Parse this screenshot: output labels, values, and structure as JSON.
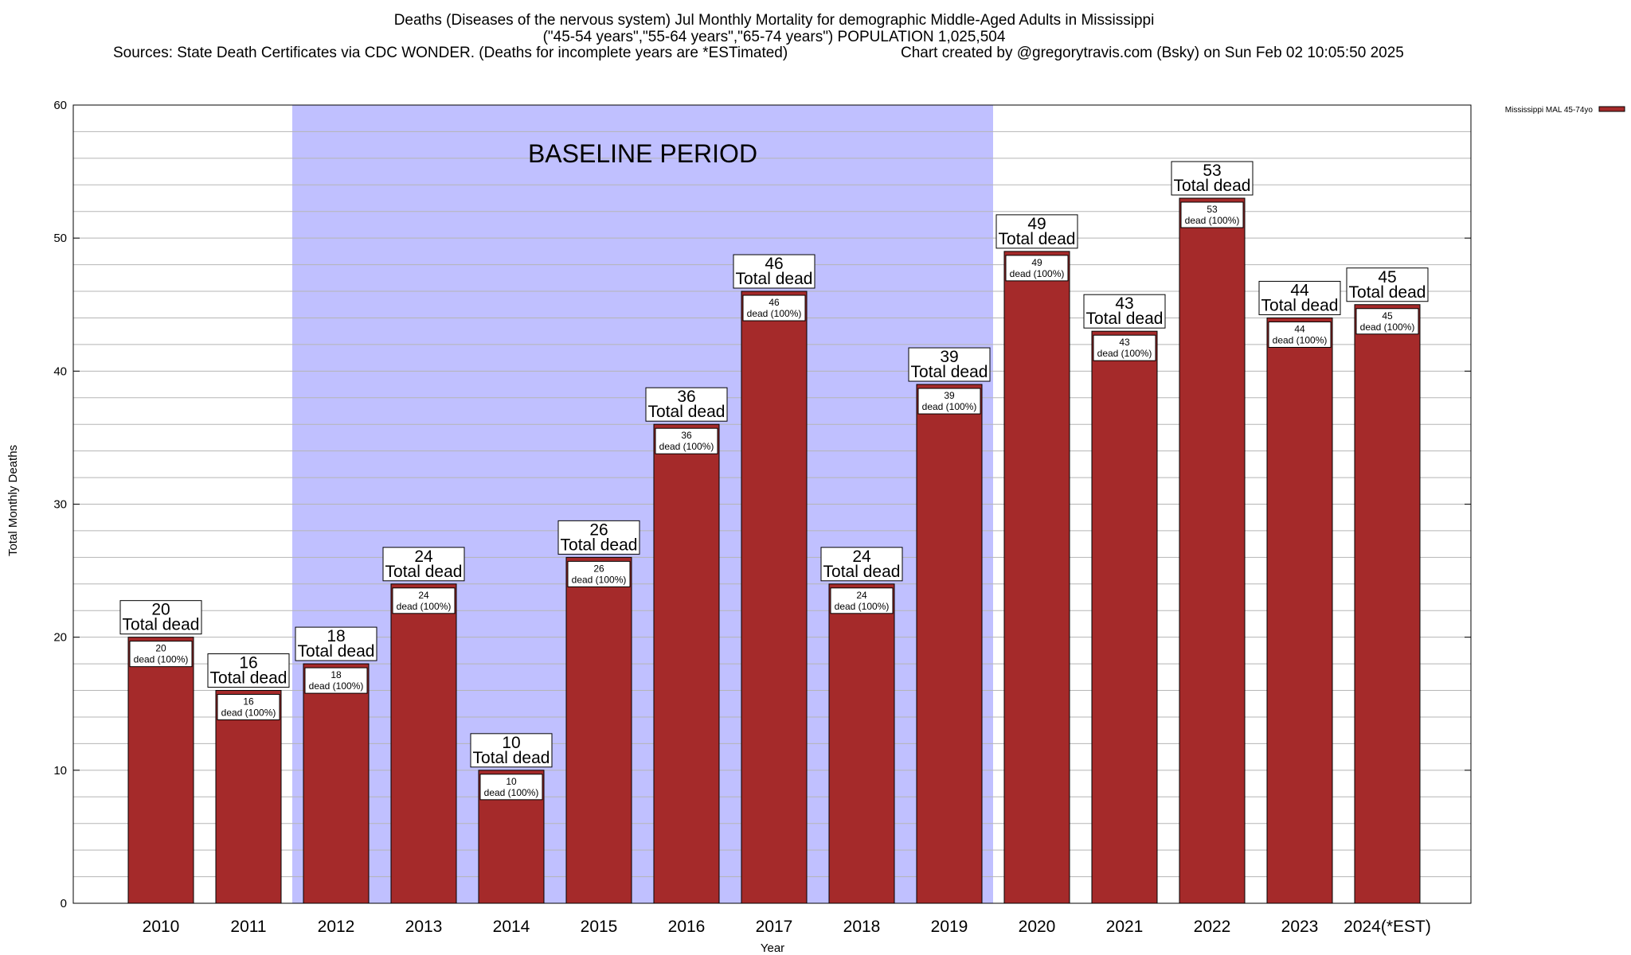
{
  "chart_data": {
    "type": "bar",
    "title": "Deaths (Diseases of the nervous system) Jul Monthly Mortality for demographic Middle-Aged Adults in Mississippi",
    "subtitle": "(\"45-54 years\",\"55-64 years\",\"65-74 years\") POPULATION 1,025,504",
    "source": "Sources: State Death Certificates via CDC WONDER. (Deaths for incomplete years are *ESTimated)",
    "credit": "Chart created by @gregorytravis.com (Bsky) on Sun Feb 02 10:05:50 2025",
    "xlabel": "Year",
    "ylabel": "Total Monthly Deaths",
    "ylim": [
      0,
      60
    ],
    "yticks": [
      0,
      10,
      20,
      30,
      40,
      50,
      60
    ],
    "grid": true,
    "legend_position": "top-right",
    "legend_label": "Mississippi MAL 45-74yo",
    "bar_color": "#a52a2a",
    "baseline_color": "#c0c0ff",
    "baseline_label": "BASELINE PERIOD",
    "baseline_range": [
      "2012",
      "2019"
    ],
    "total_label_text": "Total dead",
    "inner_label_text": "dead (100%)",
    "categories": [
      "2010",
      "2011",
      "2012",
      "2013",
      "2014",
      "2015",
      "2016",
      "2017",
      "2018",
      "2019",
      "2020",
      "2021",
      "2022",
      "2023",
      "2024(*EST)"
    ],
    "values": [
      20,
      16,
      18,
      24,
      10,
      26,
      36,
      46,
      24,
      39,
      49,
      43,
      53,
      44,
      45
    ]
  }
}
